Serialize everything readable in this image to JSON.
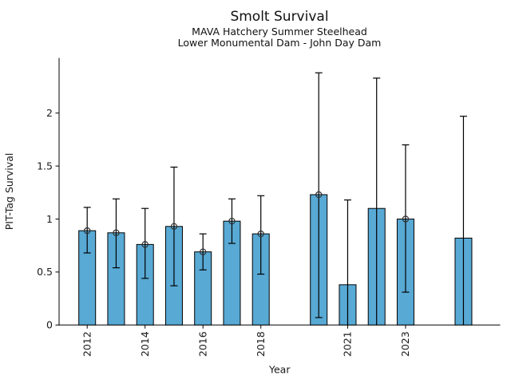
{
  "chart_data": {
    "type": "bar",
    "title": "Smolt Survival",
    "subtitle1": "MAVA Hatchery Summer Steelhead",
    "subtitle2": "Lower Monumental Dam - John Day Dam",
    "xlabel": "Year",
    "ylabel": "PIT-Tag Survival",
    "ylim": [
      0,
      2.52
    ],
    "grid": false,
    "legend": "none",
    "bar_color": "#58a9d4",
    "bar_edge_color": "#000000",
    "error_bar_color": "#000000",
    "marker_style": "open-circle",
    "yticks": [
      {
        "value": 0,
        "label": "0"
      },
      {
        "value": 0.5,
        "label": "0.5"
      },
      {
        "value": 1,
        "label": "1"
      },
      {
        "value": 1.5,
        "label": "1.5"
      },
      {
        "value": 2,
        "label": "2"
      }
    ],
    "xticks": [
      {
        "year": 2012,
        "label": "2012"
      },
      {
        "year": 2014,
        "label": "2014"
      },
      {
        "year": 2016,
        "label": "2016"
      },
      {
        "year": 2018,
        "label": "2018"
      },
      {
        "year": 2021,
        "label": "2021"
      },
      {
        "year": 2023,
        "label": "2023"
      }
    ],
    "series": [
      {
        "year": 2012,
        "value": 0.89,
        "ci_low": 0.68,
        "ci_high": 1.11,
        "marker": true
      },
      {
        "year": 2013,
        "value": 0.87,
        "ci_low": 0.54,
        "ci_high": 1.19,
        "marker": true
      },
      {
        "year": 2014,
        "value": 0.76,
        "ci_low": 0.44,
        "ci_high": 1.1,
        "marker": true
      },
      {
        "year": 2015,
        "value": 0.93,
        "ci_low": 0.37,
        "ci_high": 1.49,
        "marker": true
      },
      {
        "year": 2016,
        "value": 0.69,
        "ci_low": 0.52,
        "ci_high": 0.86,
        "marker": true
      },
      {
        "year": 2017,
        "value": 0.98,
        "ci_low": 0.77,
        "ci_high": 1.19,
        "marker": true
      },
      {
        "year": 2018,
        "value": 0.86,
        "ci_low": 0.48,
        "ci_high": 1.22,
        "marker": true
      },
      {
        "year": 2020,
        "value": 1.23,
        "ci_low": 0.07,
        "ci_high": 2.38,
        "marker": true
      },
      {
        "year": 2021,
        "value": 0.38,
        "ci_low": 0.0,
        "ci_high": 1.18,
        "marker": false
      },
      {
        "year": 2022,
        "value": 1.1,
        "ci_low": 0.0,
        "ci_high": 2.33,
        "marker": false
      },
      {
        "year": 2023,
        "value": 1.0,
        "ci_low": 0.31,
        "ci_high": 1.7,
        "marker": true
      },
      {
        "year": 2025,
        "value": 0.82,
        "ci_low": 0.0,
        "ci_high": 1.97,
        "marker": false
      }
    ]
  }
}
